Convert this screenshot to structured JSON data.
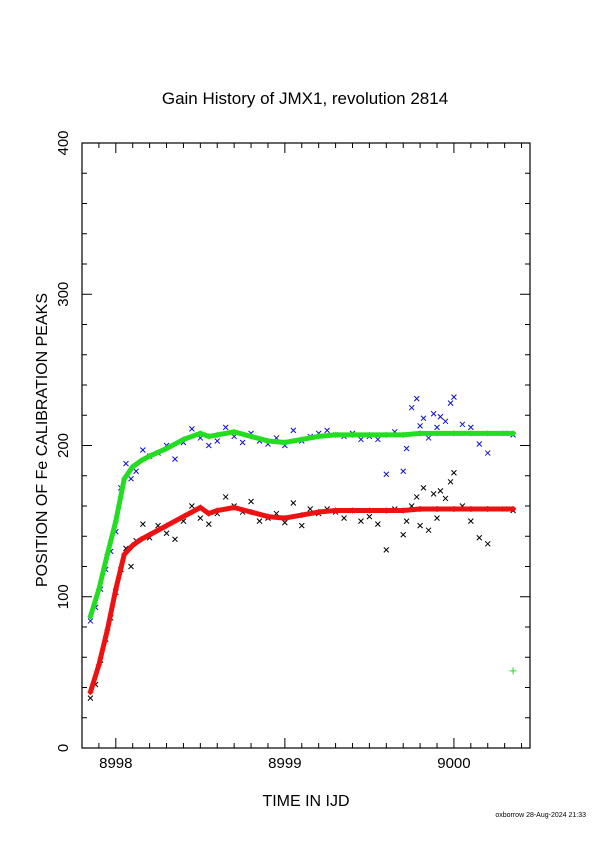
{
  "chart_data": {
    "type": "scatter",
    "title": "Gain History of JMX1, revolution 2814",
    "xlabel": "TIME IN IJD",
    "ylabel": "POSITION OF Fe CALIBRATION PEAKS",
    "xlim": [
      8997.8,
      9000.45
    ],
    "ylim": [
      0,
      400
    ],
    "x_ticks": [
      "8998",
      "8999",
      "9000"
    ],
    "y_ticks": [
      "0",
      "100",
      "200",
      "300",
      "400"
    ],
    "grid": false,
    "series": [
      {
        "color": "#1010cc",
        "marker": "x",
        "x": [
          8997.85,
          8997.88,
          8997.91,
          8997.94,
          8997.97,
          8998.0,
          8998.03,
          8998.06,
          8998.09,
          8998.12,
          8998.16,
          8998.2,
          8998.25,
          8998.3,
          8998.35,
          8998.4,
          8998.45,
          8998.5,
          8998.55,
          8998.6,
          8998.65,
          8998.7,
          8998.75,
          8998.8,
          8998.85,
          8998.9,
          8998.95,
          8999.0,
          8999.05,
          8999.1,
          8999.15,
          8999.2,
          8999.25,
          8999.3,
          8999.35,
          8999.4,
          8999.45,
          8999.5,
          8999.55,
          8999.6,
          8999.65,
          8999.7,
          8999.72,
          8999.75,
          8999.78,
          8999.8,
          8999.82,
          8999.85,
          8999.88,
          8999.9,
          8999.92,
          8999.95,
          8999.98,
          9000.0,
          9000.05,
          9000.1,
          9000.15,
          9000.2,
          9000.3,
          9000.35
        ],
        "y": [
          84,
          93,
          105,
          118,
          130,
          143,
          172,
          188,
          178,
          183,
          197,
          193,
          195,
          200,
          191,
          202,
          211,
          205,
          200,
          203,
          212,
          206,
          202,
          208,
          203,
          201,
          205,
          200,
          210,
          203,
          206,
          208,
          210,
          207,
          206,
          208,
          204,
          206,
          204,
          181,
          209,
          183,
          198,
          225,
          231,
          213,
          218,
          205,
          221,
          212,
          219,
          216,
          228,
          232,
          214,
          212,
          201,
          195,
          208,
          207
        ]
      },
      {
        "color": "#000000",
        "marker": "x",
        "x": [
          8997.85,
          8997.88,
          8997.91,
          8997.94,
          8997.97,
          8998.0,
          8998.03,
          8998.06,
          8998.09,
          8998.12,
          8998.16,
          8998.2,
          8998.25,
          8998.3,
          8998.35,
          8998.4,
          8998.45,
          8998.5,
          8998.55,
          8998.6,
          8998.65,
          8998.7,
          8998.75,
          8998.8,
          8998.85,
          8998.9,
          8998.95,
          8999.0,
          8999.05,
          8999.1,
          8999.15,
          8999.2,
          8999.25,
          8999.3,
          8999.35,
          8999.4,
          8999.45,
          8999.5,
          8999.55,
          8999.6,
          8999.65,
          8999.7,
          8999.72,
          8999.75,
          8999.78,
          8999.8,
          8999.82,
          8999.85,
          8999.88,
          8999.9,
          8999.92,
          8999.95,
          8999.98,
          9000.0,
          9000.05,
          9000.1,
          9000.15,
          9000.2,
          9000.3,
          9000.35
        ],
        "y": [
          33,
          42,
          58,
          72,
          86,
          103,
          118,
          132,
          120,
          137,
          148,
          139,
          147,
          142,
          138,
          150,
          160,
          152,
          148,
          155,
          166,
          160,
          156,
          163,
          150,
          152,
          155,
          149,
          162,
          147,
          158,
          155,
          158,
          156,
          152,
          157,
          150,
          153,
          148,
          131,
          158,
          141,
          150,
          160,
          166,
          147,
          172,
          144,
          168,
          152,
          170,
          165,
          176,
          182,
          160,
          150,
          139,
          135,
          158,
          157
        ]
      },
      {
        "color": "#22dd22",
        "marker": "+",
        "x": [
          8997.85,
          8997.9,
          8997.95,
          8998.0,
          8998.05,
          8998.1,
          8998.15,
          8998.2,
          8998.3,
          8998.4,
          8998.5,
          8998.55,
          8998.6,
          8998.7,
          8998.8,
          8998.9,
          8999.0,
          8999.1,
          8999.2,
          8999.3,
          8999.4,
          8999.5,
          8999.6,
          8999.7,
          8999.8,
          8999.9,
          9000.0,
          9000.1,
          9000.2,
          9000.35
        ],
        "y": [
          87,
          105,
          128,
          150,
          178,
          186,
          190,
          193,
          198,
          204,
          208,
          206,
          207,
          209,
          206,
          203,
          202,
          204,
          206,
          207,
          207,
          207,
          207,
          207,
          208,
          208,
          208,
          208,
          208,
          208
        ]
      },
      {
        "color": "#ee1111",
        "marker": "+",
        "x": [
          8997.85,
          8997.9,
          8997.95,
          8998.0,
          8998.05,
          8998.1,
          8998.15,
          8998.2,
          8998.3,
          8998.4,
          8998.5,
          8998.55,
          8998.6,
          8998.7,
          8998.8,
          8998.9,
          8999.0,
          8999.1,
          8999.2,
          8999.3,
          8999.4,
          8999.5,
          8999.6,
          8999.7,
          8999.8,
          8999.9,
          9000.0,
          9000.1,
          9000.2,
          9000.35
        ],
        "y": [
          37,
          55,
          78,
          105,
          128,
          134,
          138,
          141,
          147,
          153,
          159,
          155,
          157,
          159,
          156,
          153,
          152,
          154,
          156,
          157,
          157,
          157,
          157,
          157,
          158,
          158,
          158,
          158,
          158,
          158
        ]
      },
      {
        "color": "#22dd22",
        "marker": "+",
        "x": [
          9000.35
        ],
        "y": [
          51
        ]
      }
    ]
  },
  "footer": {
    "credit": "oxborrow 28-Aug-2024 21:33"
  }
}
